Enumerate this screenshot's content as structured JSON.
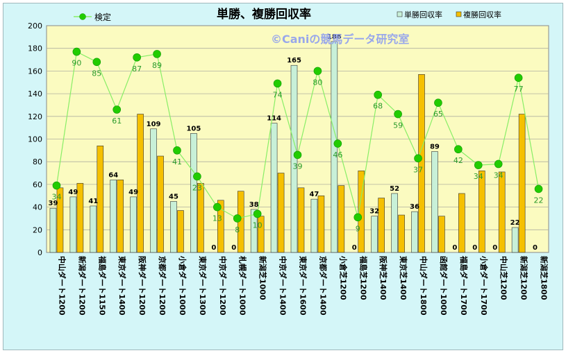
{
  "chart_data": {
    "type": "bar",
    "title": "単勝、複勝回収率",
    "watermark": "©Caniの競馬データ研究室",
    "ylim": [
      0,
      200
    ],
    "yticks": [
      0,
      20,
      40,
      60,
      80,
      100,
      120,
      140,
      160,
      180,
      200
    ],
    "grid": true,
    "legend_position": "top",
    "categories": [
      "中山ダート1200",
      "新潟ダート1200",
      "福島ダート1150",
      "東京ダート1400",
      "阪神ダート1200",
      "京都ダート1200",
      "小倉ダート1000",
      "東京ダート1300",
      "中京ダート1200",
      "札幌ダート1000",
      "新潟芝1000",
      "中京ダート1400",
      "東京ダート1600",
      "京都ダート1400",
      "小倉芝1200",
      "福島芝1200",
      "阪神芝1400",
      "東京芝1400",
      "中山ダート1800",
      "函館ダート1000",
      "福島ダート1700",
      "小倉ダート1700",
      "中山芝1200",
      "新潟芝1200",
      "新潟芝1800"
    ],
    "series": [
      {
        "name": "単勝回収率",
        "color": "#c8f0d8",
        "values": [
          39,
          49,
          41,
          64,
          49,
          109,
          45,
          105,
          0,
          0,
          38,
          114,
          165,
          47,
          186,
          0,
          32,
          52,
          36,
          89,
          0,
          0,
          0,
          22,
          0
        ],
        "labels": [
          "39",
          "49",
          "41",
          "64",
          "49",
          "109",
          "45",
          "105",
          "0",
          "0",
          "38",
          "114",
          "165",
          "47",
          "186",
          "0",
          "32",
          "52",
          "36",
          "89",
          "0",
          "0",
          "0",
          "22",
          "0"
        ]
      },
      {
        "name": "複勝回収率",
        "color": "#f5c000",
        "values": [
          57,
          61,
          94,
          64,
          122,
          85,
          37,
          61,
          46,
          54,
          32,
          70,
          57,
          50,
          59,
          72,
          48,
          33,
          157,
          32,
          52,
          72,
          71,
          122,
          0
        ]
      },
      {
        "name": "検定",
        "color": "#55dd22",
        "line_color": "#88ee66",
        "values": [
          59,
          177,
          168,
          126,
          172,
          175,
          90,
          67,
          40,
          30,
          34,
          149,
          86,
          160,
          96,
          31,
          139,
          122,
          83,
          132,
          91,
          77,
          78,
          154,
          56
        ],
        "labels": [
          "34",
          "90",
          "85",
          "61",
          "87",
          "89",
          "41",
          "23",
          "13",
          "8",
          "10",
          "74",
          "39",
          "80",
          "46",
          "9",
          "68",
          "59",
          "37",
          "65",
          "42",
          "34",
          "34",
          "77",
          "22"
        ]
      }
    ]
  }
}
